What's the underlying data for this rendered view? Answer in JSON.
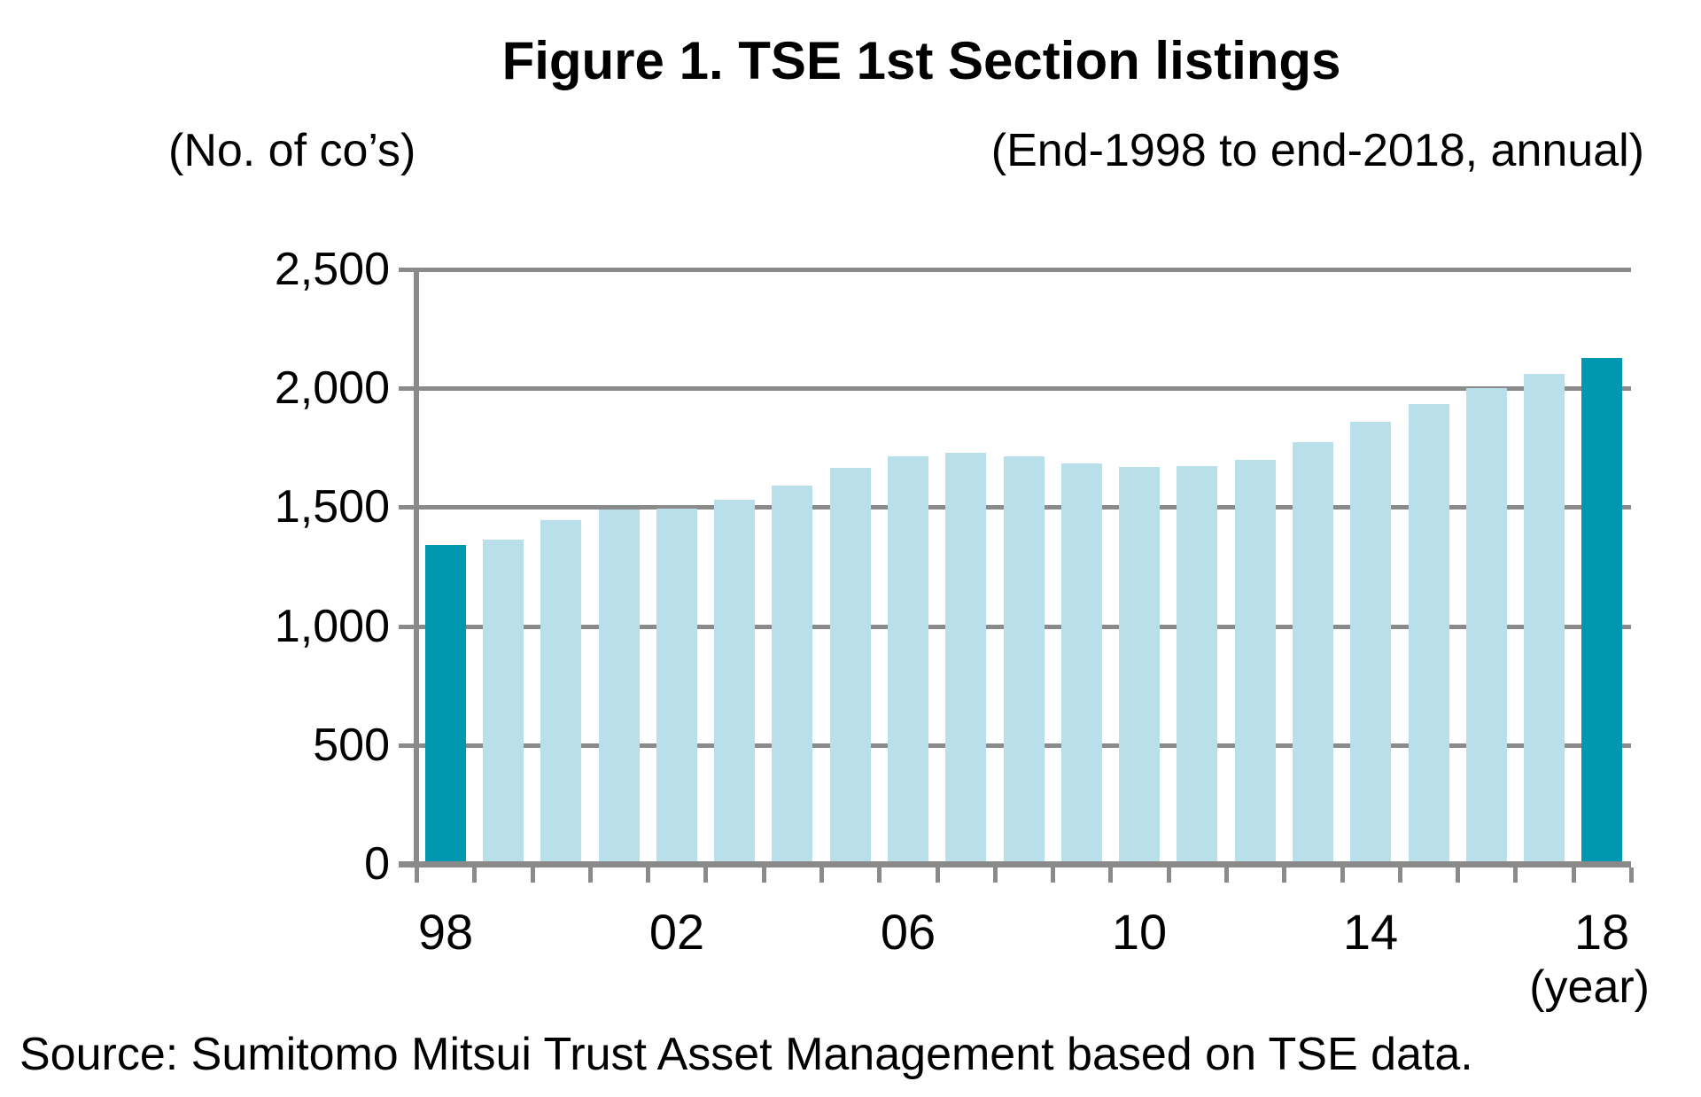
{
  "figure": {
    "title": "Figure 1. TSE 1st Section listings",
    "y_axis_unit_label": "(No. of co’s)",
    "period_label": "(End-1998 to end-2018, annual)",
    "x_axis_unit_label": "(year)",
    "source": "Source: Sumitomo Mitsui Trust Asset Management based on TSE data."
  },
  "chart_data": {
    "type": "bar",
    "title": "Figure 1. TSE 1st Section listings",
    "subtitle": "(End-1998 to end-2018, annual)",
    "ylabel": "(No. of co’s)",
    "xlabel": "(year)",
    "categories": [
      "98",
      "99",
      "00",
      "01",
      "02",
      "03",
      "04",
      "05",
      "06",
      "07",
      "08",
      "09",
      "10",
      "11",
      "12",
      "13",
      "14",
      "15",
      "16",
      "17",
      "18"
    ],
    "values": [
      1340,
      1364,
      1447,
      1491,
      1495,
      1533,
      1591,
      1667,
      1715,
      1727,
      1715,
      1684,
      1670,
      1672,
      1700,
      1774,
      1858,
      1934,
      2002,
      2062,
      2128
    ],
    "ylim": [
      0,
      2500
    ],
    "y_ticks": [
      0,
      500,
      1000,
      1500,
      2000,
      2500
    ],
    "y_tick_labels": [
      "0",
      "500",
      "1,000",
      "1,500",
      "2,000",
      "2,500"
    ],
    "x_labeled_indices": [
      0,
      4,
      8,
      12,
      16,
      20
    ],
    "x_tick_labels_shown": [
      "98",
      "02",
      "06",
      "10",
      "14",
      "18"
    ],
    "highlight_indices": [
      0,
      20
    ],
    "legend": "none",
    "grid": "horizontal",
    "colors": {
      "bar": "#b9e0ea",
      "bar_highlight": "#0098b0",
      "grid": "#8a8a8a",
      "axis": "#8a8a8a",
      "text": "#000000"
    }
  }
}
